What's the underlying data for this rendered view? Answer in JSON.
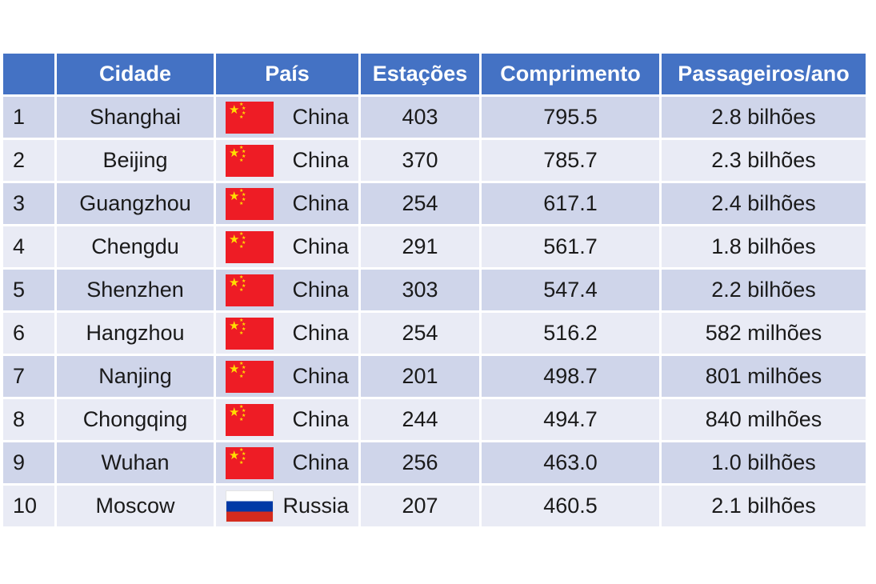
{
  "table": {
    "headers": {
      "rank": "",
      "city": "Cidade",
      "country": "País",
      "stations": "Estações",
      "length": "Comprimento",
      "passengers": "Passageiros/ano"
    },
    "rows": [
      {
        "rank": "1",
        "city": "Shanghai",
        "flag": "china-flag-icon",
        "country": "China",
        "stations": "403",
        "length": "795.5",
        "passengers": "2.8 bilhões"
      },
      {
        "rank": "2",
        "city": "Beijing",
        "flag": "china-flag-icon",
        "country": "China",
        "stations": "370",
        "length": "785.7",
        "passengers": "2.3 bilhões"
      },
      {
        "rank": "3",
        "city": "Guangzhou",
        "flag": "china-flag-icon",
        "country": "China",
        "stations": "254",
        "length": "617.1",
        "passengers": "2.4 bilhões"
      },
      {
        "rank": "4",
        "city": "Chengdu",
        "flag": "china-flag-icon",
        "country": "China",
        "stations": "291",
        "length": "561.7",
        "passengers": "1.8 bilhões"
      },
      {
        "rank": "5",
        "city": "Shenzhen",
        "flag": "china-flag-icon",
        "country": "China",
        "stations": "303",
        "length": "547.4",
        "passengers": "2.2 bilhões"
      },
      {
        "rank": "6",
        "city": "Hangzhou",
        "flag": "china-flag-icon",
        "country": "China",
        "stations": "254",
        "length": "516.2",
        "passengers": "582 milhões"
      },
      {
        "rank": "7",
        "city": "Nanjing",
        "flag": "china-flag-icon",
        "country": "China",
        "stations": "201",
        "length": "498.7",
        "passengers": "801 milhões"
      },
      {
        "rank": "8",
        "city": "Chongqing",
        "flag": "china-flag-icon",
        "country": "China",
        "stations": "244",
        "length": "494.7",
        "passengers": "840 milhões"
      },
      {
        "rank": "9",
        "city": "Wuhan",
        "flag": "china-flag-icon",
        "country": "China",
        "stations": "256",
        "length": "463.0",
        "passengers": "1.0 bilhões"
      },
      {
        "rank": "10",
        "city": "Moscow",
        "flag": "russia-flag-icon",
        "country": "Russia",
        "stations": "207",
        "length": "460.5",
        "passengers": "2.1 bilhões"
      }
    ]
  },
  "colors": {
    "header_bg": "#4472c4",
    "row_odd": "#cfd5ea",
    "row_even": "#e9ebf5"
  }
}
